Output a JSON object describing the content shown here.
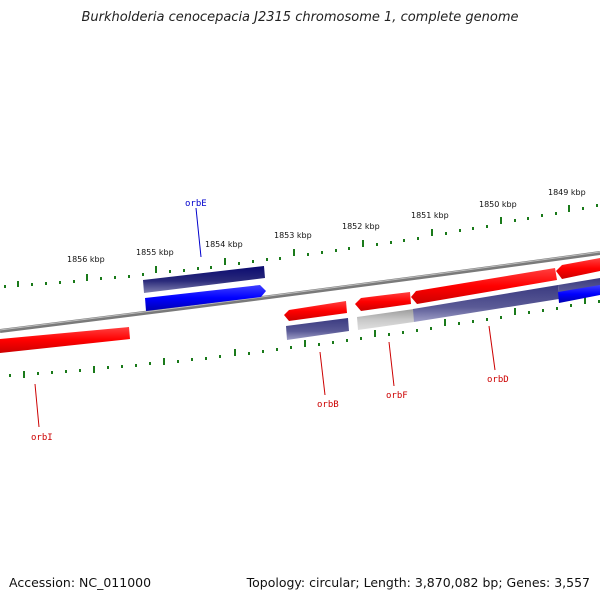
{
  "title": "Burkholderia cenocepacia J2315 chromosome 1, complete genome",
  "footer": {
    "accession": "Accession: NC_011000",
    "topology": "Topology: circular; Length: 3,870,082 bp; Genes: 3,557"
  },
  "ruler_labels": [
    "1856 kbp",
    "1855 kbp",
    "1854 kbp",
    "1853 kbp",
    "1852 kbp",
    "1851 kbp",
    "1850 kbp",
    "1849 kbp"
  ],
  "genes": [
    {
      "name": "orbE",
      "strand": "forward",
      "color": "#0000cc"
    },
    {
      "name": "orbB",
      "strand": "reverse",
      "color": "#cc0000"
    },
    {
      "name": "orbF",
      "strand": "reverse",
      "color": "#cc0000"
    },
    {
      "name": "orbD",
      "strand": "reverse",
      "color": "#cc0000"
    },
    {
      "name": "orbI",
      "strand": "reverse",
      "color": "#cc0000"
    }
  ],
  "colors": {
    "forward": "#0000ff",
    "reverse": "#ff0000",
    "backbone": "#808080",
    "tick": "#1a7a1a",
    "feature_dark": "#000080",
    "feature_mid": "#4b4b8c"
  }
}
